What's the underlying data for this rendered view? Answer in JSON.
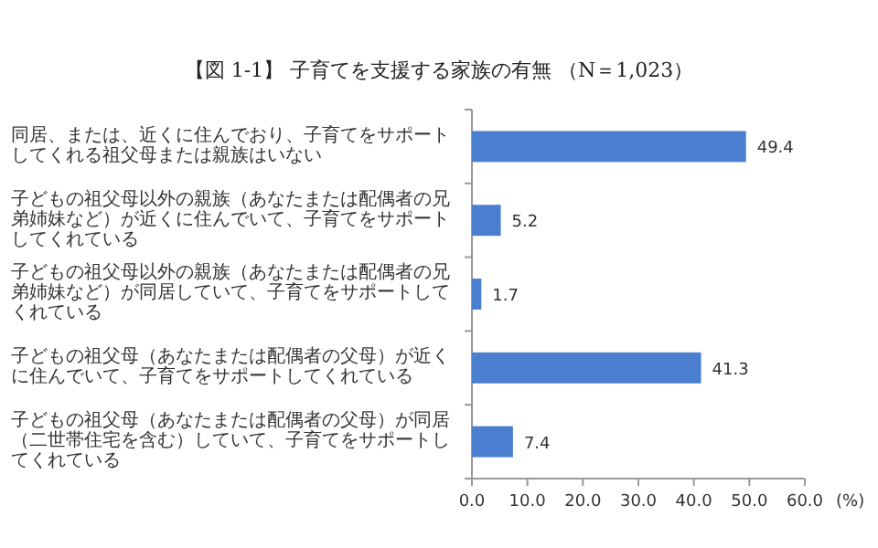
{
  "chart_data": {
    "type": "bar",
    "orientation": "horizontal",
    "title": "【図 1-1】 子育てを支援する家族の有無 （N＝1,023）",
    "categories": [
      "同居、または、近くに住んでおり、子育てをサポートしてくれる祖父母または親族はいない",
      "子どもの祖父母以外の親族（あなたまたは配偶者の兄弟姉妹など）が近くに住んでいて、子育てをサポートしてくれている",
      "子どもの祖父母以外の親族（あなたまたは配偶者の兄弟姉妹など）が同居していて、子育てをサポートしてくれている",
      "子どもの祖父母（あなたまたは配偶者の父母）が近くに住んでいて、子育てをサポートしてくれている",
      "子どもの祖父母（あなたまたは配偶者の父母）が同居（二世帯住宅を含む）していて、子育てをサポートしてくれている"
    ],
    "values": [
      49.4,
      5.2,
      1.7,
      41.3,
      7.4
    ],
    "color": "#4a7fd0",
    "data_labels": true,
    "xlabel": "(%)",
    "xlim": [
      0,
      60
    ],
    "xticks": [
      {
        "value": 0,
        "label": "0.0"
      },
      {
        "value": 10,
        "label": "10.0"
      },
      {
        "value": 20,
        "label": "20.0"
      },
      {
        "value": 30,
        "label": "30.0"
      },
      {
        "value": 40,
        "label": "40.0"
      },
      {
        "value": 50,
        "label": "50.0"
      },
      {
        "value": 60,
        "label": "60.0"
      }
    ],
    "grid": false
  }
}
